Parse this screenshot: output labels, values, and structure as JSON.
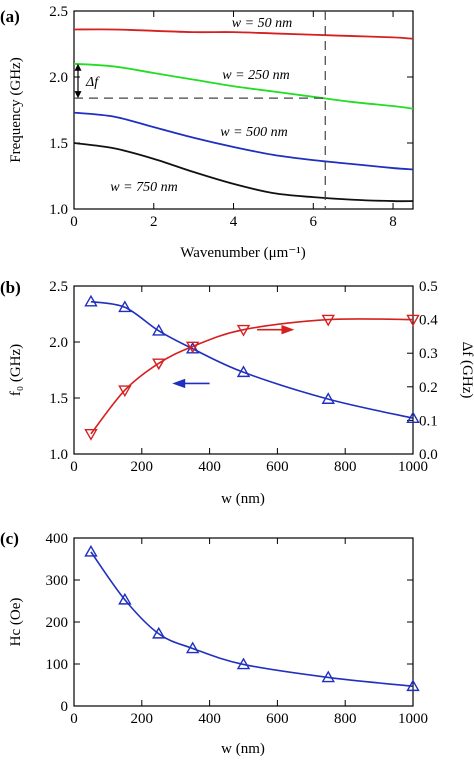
{
  "chart_data": [
    {
      "type": "line",
      "panel_label": "(a)",
      "xlabel": "Wavenumber (μm⁻¹)",
      "ylabel": "Frequency (GHz)",
      "xlim": [
        0,
        8.5
      ],
      "ylim": [
        1.0,
        2.5
      ],
      "xticks": [
        0,
        2,
        4,
        6,
        8
      ],
      "yticks": [
        1.0,
        1.5,
        2.0,
        2.5
      ],
      "grid": false,
      "series": [
        {
          "name": "w = 50 nm",
          "color": "#d62020",
          "x": [
            0,
            1,
            2,
            3,
            4,
            5,
            6,
            7,
            8,
            8.5
          ],
          "y": [
            2.36,
            2.36,
            2.35,
            2.34,
            2.34,
            2.33,
            2.32,
            2.31,
            2.3,
            2.29
          ]
        },
        {
          "name": "w = 250 nm",
          "color": "#22dd22",
          "x": [
            0,
            1,
            2,
            3,
            4,
            5,
            6,
            7,
            8,
            8.5
          ],
          "y": [
            2.1,
            2.08,
            2.03,
            1.98,
            1.93,
            1.89,
            1.85,
            1.81,
            1.78,
            1.76
          ]
        },
        {
          "name": "w = 500 nm",
          "color": "#1f2fbf",
          "x": [
            0,
            1,
            2,
            3,
            4,
            5,
            6,
            7,
            8,
            8.5
          ],
          "y": [
            1.73,
            1.7,
            1.62,
            1.54,
            1.47,
            1.41,
            1.37,
            1.34,
            1.31,
            1.3
          ]
        },
        {
          "name": "w = 750 nm",
          "color": "#111111",
          "x": [
            0,
            1,
            2,
            3,
            4,
            5,
            6,
            7,
            8,
            8.5
          ],
          "y": [
            1.5,
            1.46,
            1.38,
            1.28,
            1.19,
            1.12,
            1.09,
            1.07,
            1.06,
            1.06
          ]
        }
      ],
      "annotations": {
        "delta_label": "Δf",
        "vline_x": 6.3,
        "hline_y": 1.84,
        "arrow_x": 0.1,
        "arrow_y_top": 2.1,
        "arrow_y_bottom": 1.84
      }
    },
    {
      "type": "line",
      "panel_label": "(b)",
      "xlabel": "w (nm)",
      "ylabel_left": "f₀ (GHz)",
      "ylabel_right": "Δf (GHz)",
      "xlim": [
        0,
        1000
      ],
      "ylim_left": [
        1.0,
        2.5
      ],
      "ylim_right": [
        0.0,
        0.5
      ],
      "xticks": [
        0,
        200,
        400,
        600,
        800,
        1000
      ],
      "yticks_left": [
        1.0,
        1.5,
        2.0,
        2.5
      ],
      "yticks_right": [
        0.0,
        0.1,
        0.2,
        0.3,
        0.4,
        0.5
      ],
      "grid": false,
      "series": [
        {
          "axis": "left",
          "color": "#1f2fbf",
          "marker": "triangle-up",
          "x": [
            50,
            150,
            250,
            350,
            500,
            750,
            1000
          ],
          "y": [
            2.36,
            2.31,
            2.1,
            1.94,
            1.73,
            1.49,
            1.32
          ]
        },
        {
          "axis": "right",
          "color": "#d62020",
          "marker": "triangle-down",
          "x": [
            50,
            150,
            250,
            350,
            500,
            750,
            1000
          ],
          "y": [
            0.06,
            0.19,
            0.27,
            0.32,
            0.37,
            0.4,
            0.4
          ]
        }
      ],
      "arrows": [
        {
          "color": "#d62020",
          "direction": "right",
          "x_from": 540,
          "x_to": 640,
          "y_right": 0.37
        },
        {
          "color": "#1f2fbf",
          "direction": "left",
          "x_from": 400,
          "x_to": 300,
          "y_left": 1.63
        }
      ]
    },
    {
      "type": "line",
      "panel_label": "(c)",
      "xlabel": "w (nm)",
      "ylabel": "Hc (Oe)",
      "xlim": [
        0,
        1000
      ],
      "ylim": [
        0,
        400
      ],
      "xticks": [
        0,
        200,
        400,
        600,
        800,
        1000
      ],
      "yticks": [
        0,
        100,
        200,
        300,
        400
      ],
      "grid": false,
      "series": [
        {
          "color": "#1f2fbf",
          "marker": "triangle-up",
          "x": [
            50,
            150,
            250,
            350,
            500,
            750,
            1000
          ],
          "y": [
            367,
            253,
            172,
            137,
            99,
            68,
            47
          ]
        }
      ]
    }
  ]
}
